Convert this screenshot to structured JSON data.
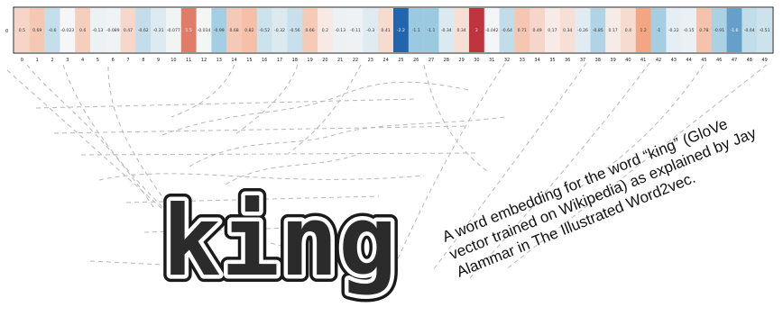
{
  "embedding": {
    "row_label": "0",
    "index_labels": [
      "0",
      "1",
      "2",
      "3",
      "4",
      "5",
      "6",
      "7",
      "8",
      "9",
      "10",
      "11",
      "12",
      "13",
      "14",
      "15",
      "16",
      "17",
      "18",
      "19",
      "20",
      "21",
      "22",
      "23",
      "24",
      "25",
      "26",
      "27",
      "28",
      "29",
      "30",
      "31",
      "32",
      "33",
      "34",
      "35",
      "36",
      "37",
      "38",
      "39",
      "40",
      "41",
      "42",
      "43",
      "44",
      "45",
      "46",
      "47",
      "48",
      "49"
    ],
    "value_labels": [
      "0.5",
      "0.69",
      "-0.6",
      "-0.023",
      "0.6",
      "-0.13",
      "-0.089",
      "0.47",
      "-0.62",
      "-0.31",
      "-0.077",
      "1.5",
      "-0.034",
      "-0.99",
      "0.68",
      "0.82",
      "-0.52",
      "-0.32",
      "-0.56",
      "0.66",
      "0.2",
      "-0.13",
      "-0.11",
      "-0.3",
      "0.41",
      "-2.2",
      "-1.1",
      "-1.1",
      "-0.34",
      "0.34",
      "2",
      "-0.042",
      "-0.64",
      "0.71",
      "0.49",
      "0.17",
      "0.34",
      "-0.26",
      "-0.85",
      "0.17",
      "0.4",
      "1.2",
      "-1",
      "-0.22",
      "-0.15",
      "0.78",
      "-0.91",
      "-1.6",
      "-0.64",
      "-0.51"
    ],
    "values": [
      0.5,
      0.69,
      -0.6,
      -0.023,
      0.6,
      -0.13,
      -0.089,
      0.47,
      -0.62,
      -0.31,
      -0.077,
      1.5,
      -0.034,
      -0.99,
      0.68,
      0.82,
      -0.52,
      -0.32,
      -0.56,
      0.66,
      0.2,
      -0.13,
      -0.11,
      -0.3,
      0.41,
      -2.2,
      -1.1,
      -1.1,
      -0.34,
      0.34,
      2,
      -0.042,
      -0.64,
      0.71,
      0.49,
      0.17,
      0.34,
      -0.26,
      -0.85,
      0.17,
      0.4,
      1.2,
      -1,
      -0.22,
      -0.15,
      0.78,
      -0.91,
      -1.6,
      -0.64,
      -0.51
    ],
    "colors": {
      "positive": "#b2182b",
      "negative": "#2166ac",
      "neutral": "#f7f7f7"
    }
  },
  "word": "king",
  "caption": {
    "lines": [
      "A word embedding for the word “king” (GloVe",
      "vector trained on Wikipedia) as explained by Jay",
      "Alammar in The Illustrated Word2vec."
    ]
  }
}
